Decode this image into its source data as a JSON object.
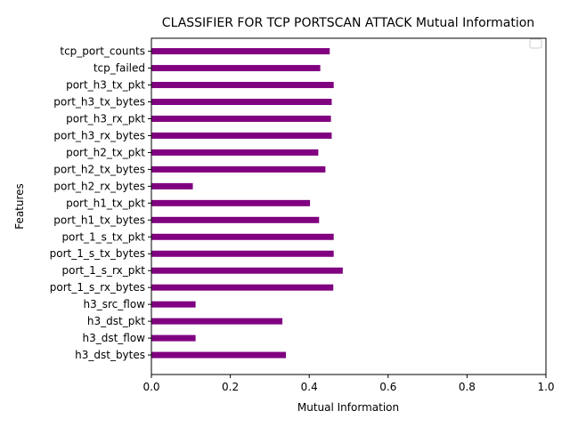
{
  "chart_data": {
    "type": "bar",
    "orientation": "horizontal",
    "title": "CLASSIFIER FOR TCP PORTSCAN ATTACK Mutual Information",
    "xlabel": "Mutual Information",
    "ylabel": "Features",
    "xlim": [
      0,
      1
    ],
    "xticks": [
      "0.0",
      "0.2",
      "0.4",
      "0.6",
      "0.8",
      "1.0"
    ],
    "xtick_values": [
      0,
      0.2,
      0.4,
      0.6,
      0.8,
      1.0
    ],
    "grid": false,
    "legend": "top-right",
    "bar_color": "#800080",
    "categories": [
      "tcp_port_counts",
      "tcp_failed",
      "port_h3_tx_pkt",
      "port_h3_tx_bytes",
      "port_h3_rx_pkt",
      "port_h3_rx_bytes",
      "port_h2_tx_pkt",
      "port_h2_tx_bytes",
      "port_h2_rx_bytes",
      "port_h1_tx_pkt",
      "port_h1_tx_bytes",
      "port_1_s_tx_pkt",
      "port_1_s_tx_bytes",
      "port_1_s_rx_pkt",
      "port_1_s_rx_bytes",
      "h3_src_flow",
      "h3_dst_pkt",
      "h3_dst_flow",
      "h3_dst_bytes"
    ],
    "values": [
      0.452,
      0.428,
      0.462,
      0.457,
      0.455,
      0.457,
      0.423,
      0.441,
      0.105,
      0.402,
      0.425,
      0.462,
      0.462,
      0.485,
      0.461,
      0.112,
      0.332,
      0.112,
      0.341
    ]
  }
}
